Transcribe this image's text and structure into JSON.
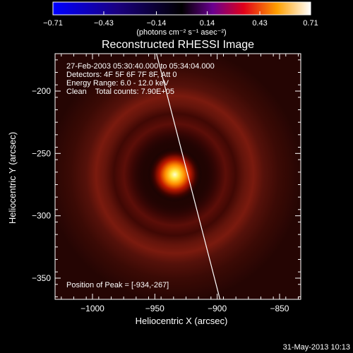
{
  "chart_data": {
    "type": "heatmap",
    "title": "Reconstructed RHESSI Image",
    "xlabel": "Heliocentric X (arcsec)",
    "ylabel": "Heliocentric Y (arcsec)",
    "xlim": [
      -1030,
      -833
    ],
    "ylim": [
      -367,
      -170
    ],
    "x_ticks": [
      {
        "value": -1000,
        "label": "−1000"
      },
      {
        "value": -950,
        "label": "−950"
      },
      {
        "value": -900,
        "label": "−900"
      },
      {
        "value": -850,
        "label": "−850"
      }
    ],
    "y_ticks": [
      {
        "value": -200,
        "label": "−200"
      },
      {
        "value": -250,
        "label": "−250"
      },
      {
        "value": -300,
        "label": "−300"
      },
      {
        "value": -350,
        "label": "−350"
      }
    ],
    "colorbar": {
      "range": [
        -0.71,
        0.71
      ],
      "ticks": [
        {
          "value": -0.71,
          "label": "−0.71"
        },
        {
          "value": -0.43,
          "label": "−0.43"
        },
        {
          "value": -0.14,
          "label": "−0.14"
        },
        {
          "value": 0.14,
          "label": "0.14"
        },
        {
          "value": 0.43,
          "label": "0.43"
        },
        {
          "value": 0.71,
          "label": "0.71"
        }
      ],
      "unit_label": "(photons cm⁻² s⁻¹ asec⁻²)"
    },
    "source": {
      "peak_x": -934,
      "peak_y": -267,
      "rings_radius_arcsec": [
        55,
        78
      ]
    },
    "info_lines": [
      "27-Feb-2003 05:30:40.000 to 05:34:04.000",
      "Detectors: 4F 5F 6F 7F 8F, Att 0",
      "Energy Range: 6.0 - 12.0 keV",
      "Clean    Total counts: 7.90E+05"
    ],
    "peak_text": "Position of Peak = [-934,-267]",
    "limb_line": {
      "x": [
        -950,
        -897
      ],
      "y": [
        -165,
        -370
      ]
    },
    "grid": false,
    "legend": "none"
  },
  "footer": {
    "date": "31-May-2013 10:13"
  },
  "colors": {
    "background": "#000000",
    "foreground": "#ffffff"
  }
}
